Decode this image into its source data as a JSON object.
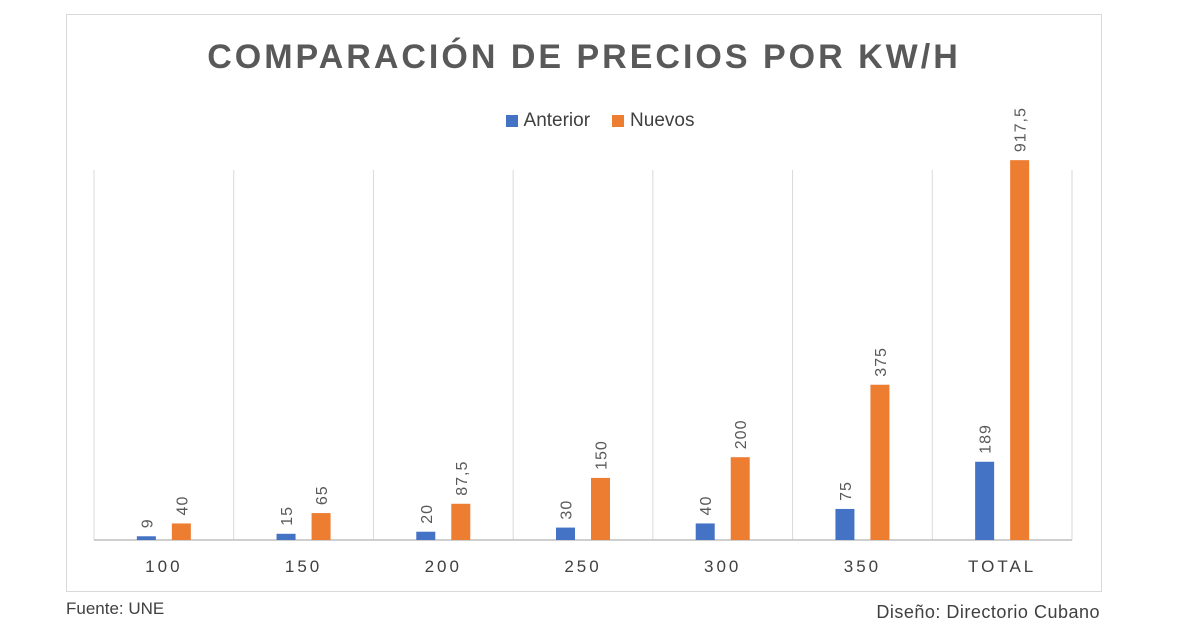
{
  "chart_data": {
    "type": "bar",
    "title": "COMPARACIÓN DE PRECIOS POR KW/H",
    "categories": [
      "100",
      "150",
      "200",
      "250",
      "300",
      "350",
      "TOTAL"
    ],
    "series": [
      {
        "name": "Anterior",
        "color": "#4472c4",
        "values": [
          9,
          15,
          20,
          30,
          40,
          75,
          189
        ],
        "labels": [
          "9",
          "15",
          "20",
          "30",
          "40",
          "75",
          "189"
        ]
      },
      {
        "name": "Nuevos",
        "color": "#ed7d31",
        "values": [
          40,
          65,
          87.5,
          150,
          200,
          375,
          917.5
        ],
        "labels": [
          "40",
          "65",
          "87,5",
          "150",
          "200",
          "375",
          "917,5"
        ]
      }
    ],
    "ylim": [
      0,
      1000
    ],
    "grid": "vertical separators",
    "legend_position": "top-center"
  },
  "footer": {
    "source": "Fuente: UNE",
    "design": "Diseño: Directorio Cubano"
  }
}
